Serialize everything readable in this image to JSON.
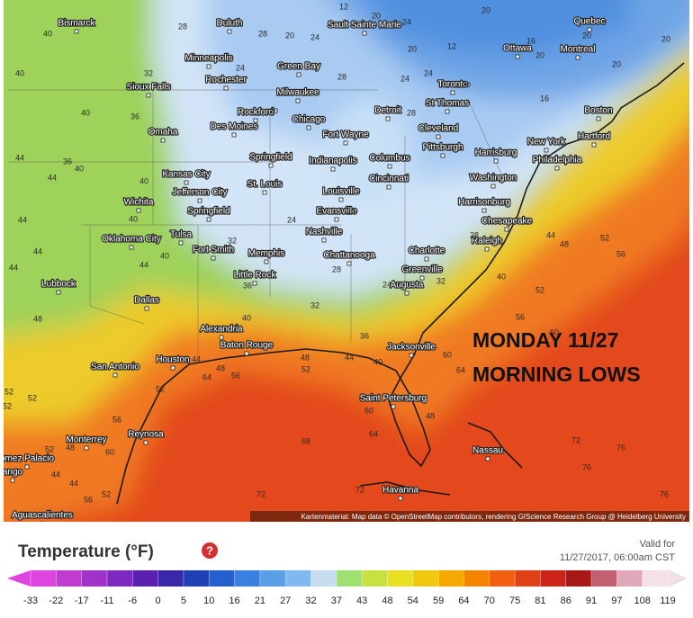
{
  "map": {
    "cities": [
      "Bismarck",
      "Duluth",
      "Sault Sainte Marie",
      "Quebec",
      "Minneapolis",
      "Green Bay",
      "Ottawa",
      "Montreal",
      "Sioux Falls",
      "Rochester",
      "Milwaukee",
      "Toronto",
      "Detroit",
      "St Thomas",
      "Boston",
      "Rockford",
      "Chicago",
      "Des Moines",
      "Omaha",
      "Cleveland",
      "Fort Wayne",
      "Hartford",
      "Pittsburgh",
      "Harrisburg",
      "New York",
      "Springfield",
      "Indianapolis",
      "Columbus",
      "Philadelphia",
      "Kansas City",
      "St. Louis",
      "Cincinnati",
      "Washington",
      "Jefferson City",
      "Louisville",
      "Harrisonburg",
      "Wichita",
      "Springfield",
      "Evansville",
      "Chesapeake",
      "Oklahoma City",
      "Tulsa",
      "Nashville",
      "Raleigh",
      "Charlotte",
      "Fort Smith",
      "Memphis",
      "Chattanooga",
      "Greenville",
      "Little Rock",
      "Augusta",
      "Lubbock",
      "Dallas",
      "Alexandria",
      "Baton Rouge",
      "Jacksonville",
      "Houston",
      "San Antonio",
      "Saint Petersburg",
      "Monterrey",
      "Reynosa",
      "Nassau",
      "Havanna",
      "Aguascalientes",
      "omez Palacio",
      "ango"
    ],
    "temperature_labels": [
      40,
      28,
      28,
      20,
      24,
      12,
      20,
      24,
      20,
      12,
      20,
      16,
      20,
      20,
      20,
      20,
      40,
      32,
      40,
      36,
      28,
      24,
      20,
      24,
      20,
      16,
      24,
      28,
      36,
      40,
      44,
      44,
      40,
      44,
      40,
      44,
      44,
      48,
      44,
      40,
      32,
      24,
      24,
      28,
      44,
      48,
      52,
      56,
      28,
      24,
      32,
      40,
      52,
      32,
      36,
      40,
      56,
      60,
      36,
      44,
      40,
      48,
      52,
      60,
      48,
      64,
      68,
      72,
      72,
      72,
      76,
      76,
      76,
      64,
      60,
      64,
      56,
      52,
      56,
      52,
      48,
      52,
      60,
      56,
      44,
      52,
      44,
      52,
      52,
      48,
      44
    ],
    "overlay": [
      "MONDAY 11/27",
      "MORNING LOWS"
    ],
    "attribution": "Kartenmaterial: Map data © OpenStreetMap contributors, rendering GIScience Research Group @ Heidelberg University"
  },
  "legend": {
    "title": "Temperature (°F)",
    "valid_for_label": "Valid for",
    "valid_time": "11/27/2017, 06:00am CST",
    "ticks": [
      -33,
      -22,
      -17,
      -11,
      -6,
      0,
      5,
      10,
      16,
      21,
      27,
      32,
      37,
      43,
      48,
      54,
      59,
      64,
      70,
      75,
      81,
      86,
      91,
      97,
      108,
      119
    ],
    "colors": [
      "#e044e0",
      "#c03cd0",
      "#a032c8",
      "#7d28c0",
      "#5a20b0",
      "#3a28a8",
      "#2040b8",
      "#2660d0",
      "#3a80e0",
      "#5a9ee8",
      "#80b8f0",
      "#c8dcf0",
      "#a0e070",
      "#c8e040",
      "#e8e020",
      "#f0c810",
      "#f4a800",
      "#f48400",
      "#f06010",
      "#e04018",
      "#cc2418",
      "#a81818",
      "#c06070",
      "#e0a8b8",
      "#f4e0e8"
    ]
  }
}
